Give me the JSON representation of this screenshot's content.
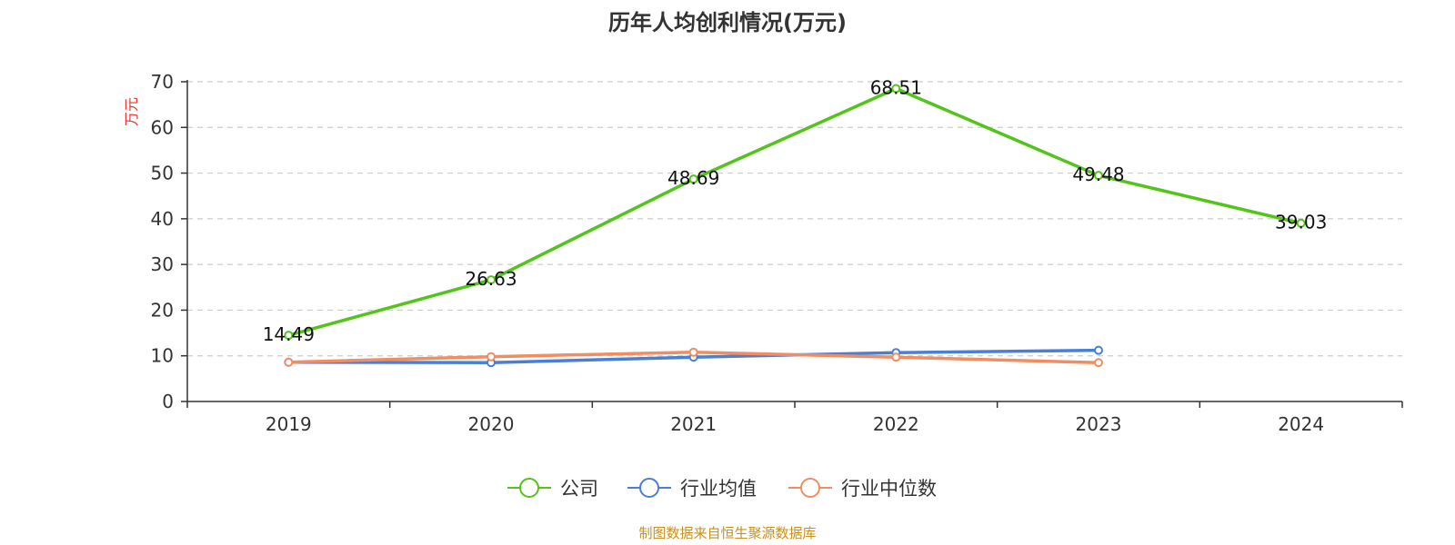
{
  "chart_data": {
    "type": "line",
    "title": "历年人均创利情况(万元)",
    "ylabel": "万元",
    "xlabel": "",
    "categories": [
      "2019",
      "2020",
      "2021",
      "2022",
      "2023",
      "2024"
    ],
    "ylim": [
      0,
      70
    ],
    "yticks": [
      0,
      10,
      20,
      30,
      40,
      50,
      60,
      70
    ],
    "grid": true,
    "legend_position": "bottom-center",
    "series": [
      {
        "name": "公司",
        "color": "#52c41a",
        "values": [
          14.49,
          26.63,
          48.69,
          68.51,
          49.48,
          39.03
        ],
        "labels": [
          "14.49",
          "26.63",
          "48.69",
          "68.51",
          "49.48",
          "39.03"
        ]
      },
      {
        "name": "行业均值",
        "color": "#4a7fd8",
        "values": [
          8.6,
          8.5,
          9.7,
          10.7,
          11.2,
          null
        ]
      },
      {
        "name": "行业中位数",
        "color": "#f08d63",
        "values": [
          8.6,
          9.8,
          10.8,
          9.7,
          8.5,
          null
        ]
      }
    ]
  },
  "footer": {
    "source": "制图数据来自恒生聚源数据库"
  },
  "colors": {
    "ylabel": "#e8352e",
    "source": "#c8901c",
    "axis": "#333333",
    "grid": "#cccccc"
  }
}
